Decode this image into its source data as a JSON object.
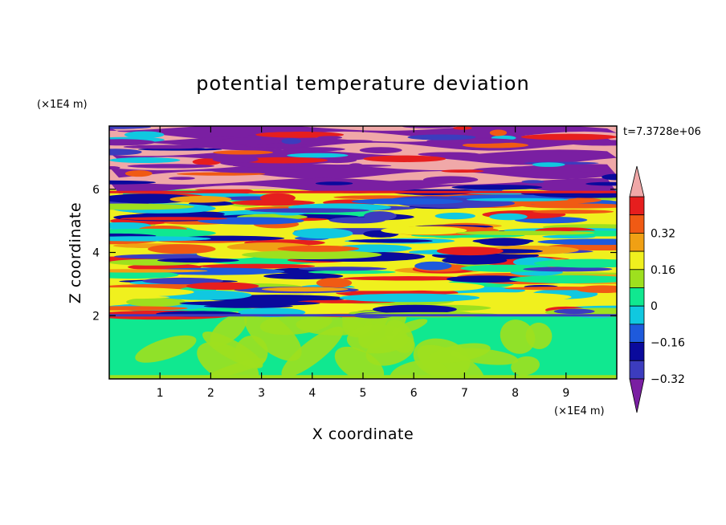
{
  "chart_data": {
    "type": "heatmap",
    "title": "potential temperature deviation",
    "time_label": "t=7.3728e+06",
    "xlabel": "X coordinate",
    "ylabel": "Z coordinate",
    "x_unit": "(×1E4 m)",
    "y_unit": "(×1E4 m)",
    "xlim": [
      0,
      10
    ],
    "ylim": [
      0,
      8
    ],
    "x_ticks": [
      "1",
      "2",
      "3",
      "4",
      "5",
      "6",
      "7",
      "8",
      "9"
    ],
    "y_ticks": [
      "2",
      "4",
      "6"
    ],
    "colorbar": {
      "labels": [
        "0.32",
        "0.16",
        "0",
        "−0.16",
        "−0.32"
      ],
      "label_values": [
        0.32,
        0.16,
        0,
        -0.16,
        -0.32
      ],
      "levels": [
        -0.4,
        -0.32,
        -0.24,
        -0.16,
        -0.08,
        0,
        0.08,
        0.16,
        0.24,
        0.32,
        0.4
      ],
      "colors": [
        "#7a1fa2",
        "#3c3cbe",
        "#0a0a9c",
        "#1e5adc",
        "#10c8e0",
        "#10e890",
        "#9ee01e",
        "#f0f01e",
        "#f0a014",
        "#f05a14",
        "#e61e1e",
        "#f0a8a8"
      ],
      "extend": "both"
    },
    "regions": [
      {
        "z_range": [
          0,
          2
        ],
        "description": "mostly 0 to 0.08, patches of 0.08 to 0.16"
      },
      {
        "z_range": [
          2,
          6
        ],
        "description": "layered bands alternating between -0.40 and 0.40"
      },
      {
        "z_range": [
          6,
          8
        ],
        "description": "alternating bands above 0.40 and below -0.40"
      }
    ]
  }
}
